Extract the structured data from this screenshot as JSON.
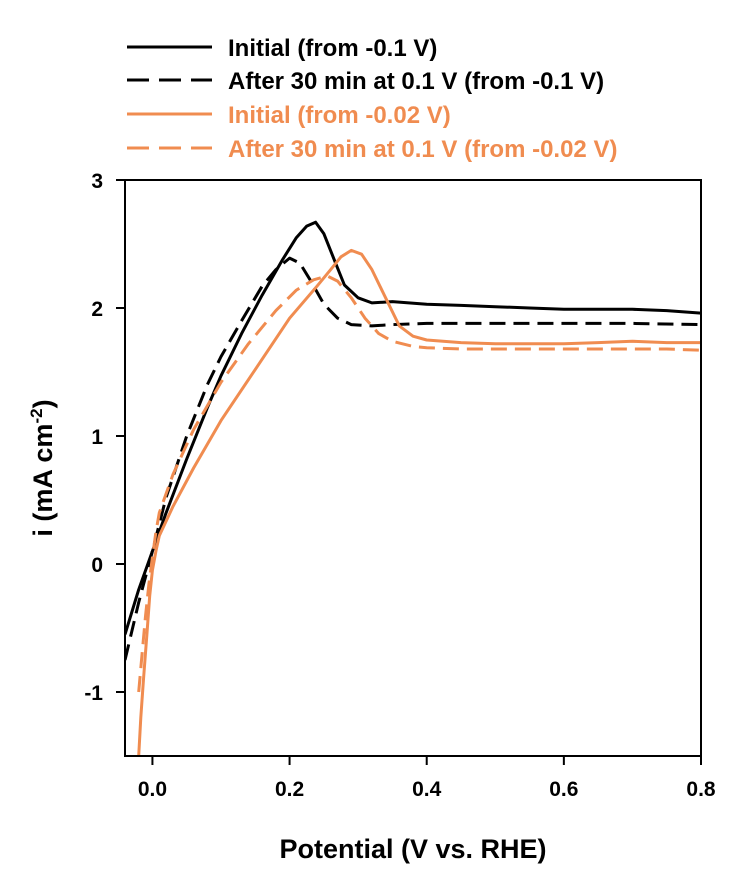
{
  "chart_data": {
    "type": "line",
    "title": "",
    "xlabel": "Potential (V vs. RHE)",
    "ylabel_main": "i (mA cm",
    "ylabel_sup": "-2",
    "ylabel_end": ")",
    "xlim": [
      -0.04,
      0.8
    ],
    "ylim": [
      -1.5,
      3
    ],
    "xticks": [
      0.0,
      0.2,
      0.4,
      0.6,
      0.8
    ],
    "xtick_labels": [
      "0.0",
      "0.2",
      "0.4",
      "0.6",
      "0.8"
    ],
    "yticks": [
      -1,
      0,
      1,
      2,
      3
    ],
    "ytick_labels": [
      "-1",
      "0",
      "1",
      "2",
      "3"
    ],
    "grid": false,
    "legend_placement": "top, above plot",
    "series": [
      {
        "name": "Initial (from -0.1 V)",
        "color": "#000000",
        "dash": "solid",
        "x": [
          -0.04,
          -0.02,
          0.0,
          0.02,
          0.05,
          0.08,
          0.1,
          0.13,
          0.16,
          0.19,
          0.21,
          0.225,
          0.238,
          0.25,
          0.265,
          0.28,
          0.3,
          0.32,
          0.35,
          0.4,
          0.45,
          0.5,
          0.55,
          0.6,
          0.65,
          0.7,
          0.75,
          0.8
        ],
        "y": [
          -0.55,
          -0.2,
          0.1,
          0.4,
          0.82,
          1.22,
          1.47,
          1.8,
          2.1,
          2.38,
          2.55,
          2.64,
          2.67,
          2.58,
          2.38,
          2.18,
          2.08,
          2.04,
          2.05,
          2.03,
          2.02,
          2.01,
          2.0,
          1.99,
          1.99,
          1.99,
          1.98,
          1.96
        ]
      },
      {
        "name": "After 30 min at 0.1 V (from -0.1 V)",
        "color": "#000000",
        "dash": "dashed",
        "x": [
          -0.04,
          -0.02,
          0.0,
          0.02,
          0.05,
          0.08,
          0.1,
          0.13,
          0.16,
          0.18,
          0.2,
          0.215,
          0.23,
          0.25,
          0.27,
          0.29,
          0.32,
          0.35,
          0.4,
          0.5,
          0.6,
          0.7,
          0.8
        ],
        "y": [
          -0.75,
          -0.3,
          0.1,
          0.52,
          1.0,
          1.4,
          1.62,
          1.9,
          2.17,
          2.3,
          2.39,
          2.35,
          2.22,
          2.03,
          1.92,
          1.87,
          1.86,
          1.87,
          1.88,
          1.88,
          1.88,
          1.88,
          1.87
        ]
      },
      {
        "name": "Initial (from -0.02 V)",
        "color": "#f08c50",
        "dash": "solid",
        "x": [
          -0.02,
          -0.017,
          -0.013,
          -0.008,
          -0.004,
          0.0,
          0.005,
          0.01,
          0.03,
          0.06,
          0.1,
          0.15,
          0.2,
          0.24,
          0.26,
          0.275,
          0.29,
          0.305,
          0.32,
          0.34,
          0.36,
          0.38,
          0.4,
          0.45,
          0.5,
          0.55,
          0.6,
          0.65,
          0.7,
          0.75,
          0.8
        ],
        "y": [
          -1.5,
          -1.2,
          -0.9,
          -0.55,
          -0.25,
          -0.05,
          0.1,
          0.22,
          0.45,
          0.75,
          1.12,
          1.52,
          1.92,
          2.17,
          2.3,
          2.4,
          2.45,
          2.42,
          2.3,
          2.08,
          1.86,
          1.78,
          1.75,
          1.73,
          1.72,
          1.72,
          1.72,
          1.73,
          1.74,
          1.73,
          1.73
        ]
      },
      {
        "name": "After 30 min at 0.1 V (from -0.02 V)",
        "color": "#f08c50",
        "dash": "dashed",
        "x": [
          -0.02,
          -0.015,
          -0.01,
          -0.005,
          0.0,
          0.005,
          0.01,
          0.03,
          0.06,
          0.1,
          0.14,
          0.18,
          0.21,
          0.235,
          0.255,
          0.27,
          0.29,
          0.31,
          0.33,
          0.35,
          0.38,
          0.4,
          0.45,
          0.5,
          0.55,
          0.6,
          0.65,
          0.7,
          0.75,
          0.8
        ],
        "y": [
          -1.0,
          -0.7,
          -0.4,
          -0.15,
          0.05,
          0.25,
          0.4,
          0.7,
          1.05,
          1.42,
          1.72,
          1.98,
          2.14,
          2.22,
          2.25,
          2.21,
          2.08,
          1.92,
          1.8,
          1.74,
          1.7,
          1.69,
          1.68,
          1.68,
          1.68,
          1.68,
          1.68,
          1.68,
          1.68,
          1.67
        ]
      }
    ]
  }
}
